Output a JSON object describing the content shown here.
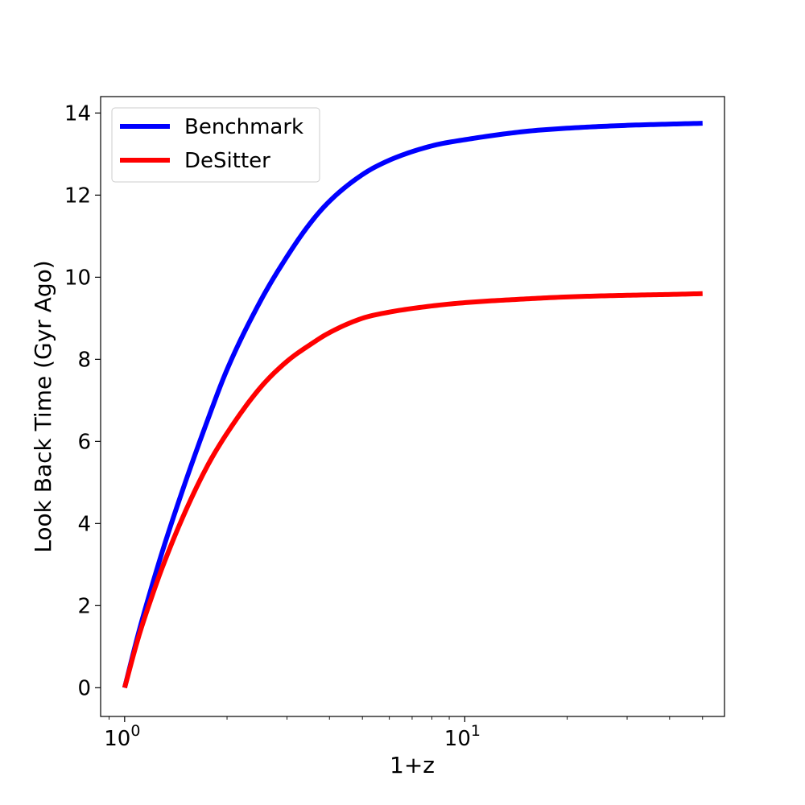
{
  "chart_data": {
    "type": "line",
    "title": "",
    "xlabel": "1+z",
    "ylabel": "Look Back Time (Gyr Ago)",
    "xscale": "log",
    "xlim": [
      0.85,
      58
    ],
    "ylim": [
      -0.7,
      14.4
    ],
    "grid": false,
    "legend_position": "top-left",
    "x_ticks": [
      {
        "value": 1,
        "base": "10",
        "exp": "0"
      },
      {
        "value": 10,
        "base": "10",
        "exp": "1"
      }
    ],
    "y_ticks": [
      0,
      2,
      4,
      6,
      8,
      10,
      12,
      14
    ],
    "series": [
      {
        "name": "Benchmark",
        "color": "#0000ff",
        "x": [
          1,
          1.1,
          1.2,
          1.3,
          1.5,
          1.75,
          2,
          2.5,
          3,
          3.5,
          4,
          5,
          6,
          8,
          10,
          15,
          20,
          30,
          40,
          50
        ],
        "y": [
          0,
          1.35,
          2.45,
          3.4,
          4.95,
          6.5,
          7.75,
          9.4,
          10.5,
          11.3,
          11.85,
          12.5,
          12.85,
          13.2,
          13.35,
          13.55,
          13.63,
          13.7,
          13.73,
          13.75
        ]
      },
      {
        "name": "DeSitter",
        "color": "#ff0000",
        "x": [
          1,
          1.1,
          1.2,
          1.3,
          1.5,
          1.75,
          2,
          2.5,
          3,
          3.5,
          4,
          5,
          6,
          8,
          10,
          15,
          20,
          30,
          40,
          50
        ],
        "y": [
          0,
          1.25,
          2.2,
          3.0,
          4.25,
          5.4,
          6.2,
          7.3,
          7.95,
          8.35,
          8.65,
          9.0,
          9.15,
          9.3,
          9.38,
          9.47,
          9.52,
          9.56,
          9.58,
          9.6
        ]
      }
    ]
  }
}
